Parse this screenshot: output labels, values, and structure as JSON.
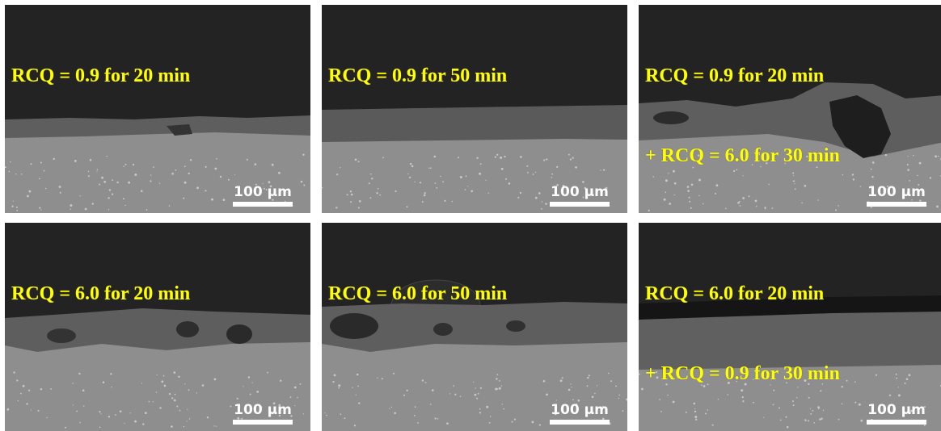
{
  "figure": {
    "panels": [
      {
        "id": "a",
        "label_lines": [
          "RCQ = 0.9 for 20 min"
        ],
        "scale_bar": "100 µm"
      },
      {
        "id": "b",
        "label_lines": [
          "RCQ = 0.9 for 50 min"
        ],
        "scale_bar": "100 µm"
      },
      {
        "id": "c",
        "label_lines": [
          "RCQ = 0.9 for 20 min",
          "+ RCQ = 6.0 for 30 min"
        ],
        "scale_bar": "100 µm"
      },
      {
        "id": "d",
        "label_lines": [
          "RCQ = 6.0 for 20 min"
        ],
        "scale_bar": "100 µm"
      },
      {
        "id": "e",
        "label_lines": [
          "RCQ = 6.0 for 50 min"
        ],
        "scale_bar": "100 µm"
      },
      {
        "id": "f",
        "label_lines": [
          "RCQ = 6.0 for 20 min",
          "+ RCQ = 0.9 for 30 min"
        ],
        "scale_bar": "100 µm"
      }
    ],
    "colors": {
      "label": "#ffff00",
      "background_resin": "#232323",
      "substrate": "#8e8e8e",
      "scale_bar": "#ffffff"
    }
  }
}
